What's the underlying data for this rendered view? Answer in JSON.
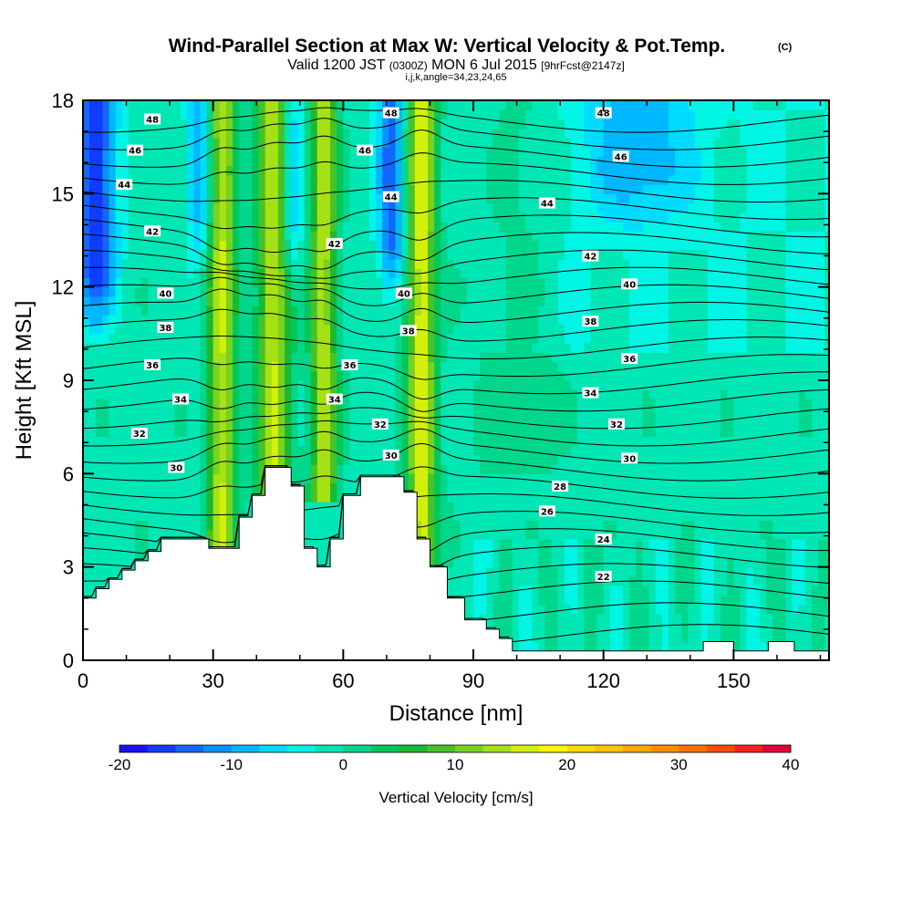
{
  "chart_data": {
    "type": "heatmap",
    "title": "Wind-Parallel Section at Max W: Vertical Velocity & Pot.Temp.",
    "title_mark": "(C)",
    "subtitle_prefix": "Valid 1200 JST",
    "subtitle_utc": "(0300Z)",
    "subtitle_date": "MON 6 Jul 2015",
    "subtitle_fcst": "[9hrFcst@2147z]",
    "subtitle_indices": "i,j,k,angle=34,23,24,65",
    "xlabel": "Distance [nm]",
    "ylabel": "Height [Kft MSL]",
    "xlim": [
      0,
      172
    ],
    "ylim": [
      0,
      18
    ],
    "x_ticks": [
      0,
      30,
      60,
      90,
      120,
      150
    ],
    "y_ticks": [
      0,
      3,
      6,
      9,
      12,
      15,
      18
    ],
    "colorbar": {
      "label": "Vertical Velocity [cm/s]",
      "min": -20,
      "max": 40,
      "step": 2.5,
      "ticks": [
        -20,
        -10,
        0,
        10,
        20,
        30,
        40
      ],
      "colors": [
        "#1a10ff",
        "#0f3cff",
        "#1466ff",
        "#0a92ff",
        "#00b8ff",
        "#00dcff",
        "#00f5e5",
        "#00e6b4",
        "#00d78c",
        "#00c85a",
        "#19b932",
        "#46c328",
        "#78d21e",
        "#a5e114",
        "#d2f00a",
        "#fff500",
        "#ffdc00",
        "#ffc300",
        "#ffaa00",
        "#ff8c00",
        "#ff6e00",
        "#ff4b00",
        "#ff1e1e",
        "#e6003c",
        "#c80064",
        "#a0008c",
        "#7800a0",
        "#50008c"
      ]
    },
    "theta_labels": [
      {
        "text": "48",
        "x": 16,
        "y": 17.4
      },
      {
        "text": "46",
        "x": 12,
        "y": 16.4
      },
      {
        "text": "44",
        "x": 9.5,
        "y": 15.3
      },
      {
        "text": "42",
        "x": 16,
        "y": 13.8
      },
      {
        "text": "40",
        "x": 19,
        "y": 11.8
      },
      {
        "text": "38",
        "x": 19,
        "y": 10.7
      },
      {
        "text": "36",
        "x": 16,
        "y": 9.5
      },
      {
        "text": "34",
        "x": 22.5,
        "y": 8.4
      },
      {
        "text": "32",
        "x": 13,
        "y": 7.3
      },
      {
        "text": "30",
        "x": 21.5,
        "y": 6.2
      },
      {
        "text": "48",
        "x": 71,
        "y": 17.6
      },
      {
        "text": "46",
        "x": 65,
        "y": 16.4
      },
      {
        "text": "44",
        "x": 71,
        "y": 14.9
      },
      {
        "text": "42",
        "x": 58,
        "y": 13.4
      },
      {
        "text": "40",
        "x": 74,
        "y": 11.8
      },
      {
        "text": "38",
        "x": 75,
        "y": 10.6
      },
      {
        "text": "36",
        "x": 61.5,
        "y": 9.5
      },
      {
        "text": "34",
        "x": 58,
        "y": 8.4
      },
      {
        "text": "32",
        "x": 68.5,
        "y": 7.6
      },
      {
        "text": "30",
        "x": 71,
        "y": 6.6
      },
      {
        "text": "48",
        "x": 120,
        "y": 17.6
      },
      {
        "text": "46",
        "x": 124,
        "y": 16.2
      },
      {
        "text": "44",
        "x": 107,
        "y": 14.7
      },
      {
        "text": "42",
        "x": 117,
        "y": 13.0
      },
      {
        "text": "40",
        "x": 126,
        "y": 12.1
      },
      {
        "text": "38",
        "x": 117,
        "y": 10.9
      },
      {
        "text": "36",
        "x": 126,
        "y": 9.7
      },
      {
        "text": "34",
        "x": 117,
        "y": 8.6
      },
      {
        "text": "32",
        "x": 123,
        "y": 7.6
      },
      {
        "text": "30",
        "x": 126,
        "y": 6.5
      },
      {
        "text": "28",
        "x": 110,
        "y": 5.6
      },
      {
        "text": "26",
        "x": 107,
        "y": 4.8
      },
      {
        "text": "24",
        "x": 120,
        "y": 3.9
      },
      {
        "text": "22",
        "x": 120,
        "y": 2.7
      }
    ],
    "updrafts": [
      {
        "name": "left",
        "center": 32,
        "width": 3.2,
        "peak": 16,
        "y_low": 2,
        "y_high": 18
      },
      {
        "name": "mid-left",
        "center": 44,
        "width": 3.8,
        "peak": 16,
        "y_low": 5,
        "y_high": 18
      },
      {
        "name": "mid",
        "center": 55.5,
        "width": 3.0,
        "peak": 15,
        "y_low": 5,
        "y_high": 18
      },
      {
        "name": "right",
        "center": 78,
        "width": 3.2,
        "peak": 18,
        "y_low": 2,
        "y_high": 18
      }
    ],
    "downdrafts": [
      {
        "name": "far-left",
        "center": 3,
        "width": 4.5,
        "peak": -16,
        "y_low": 10,
        "y_high": 18
      },
      {
        "name": "left",
        "center": 27,
        "width": 3.0,
        "peak": -9,
        "y_low": 12,
        "y_high": 18
      },
      {
        "name": "mid",
        "center": 48,
        "width": 2.5,
        "peak": -8,
        "y_low": 11,
        "y_high": 18
      },
      {
        "name": "mid-right",
        "center": 71,
        "width": 3.0,
        "peak": -13,
        "y_low": 11,
        "y_high": 18
      },
      {
        "name": "upper-right",
        "center": 128,
        "width": 12,
        "peak": -7,
        "y_low": 13,
        "y_high": 18
      }
    ]
  }
}
